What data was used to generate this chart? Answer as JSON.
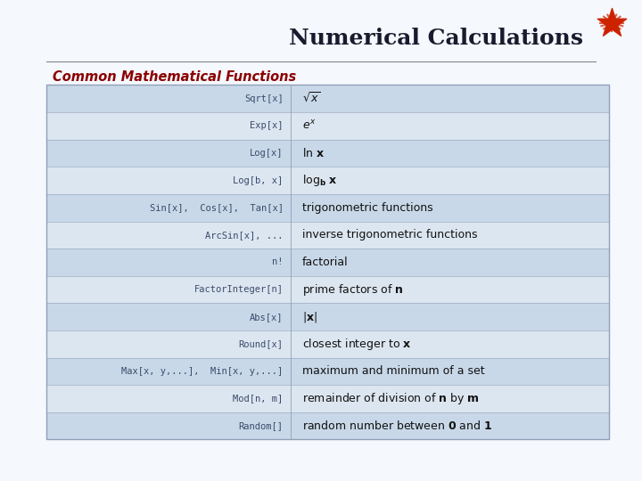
{
  "title": "Numerical Calculations",
  "subtitle": "Common Mathematical Functions",
  "subtitle_color": "#8B0000",
  "bg_color": "#f5f8fc",
  "table_border_color": "#90a0b8",
  "row_colors": [
    "#c8d8e8",
    "#dce6f0"
  ],
  "rows": [
    {
      "left": "Sqrt[x]",
      "right": "$\\sqrt{x}$"
    },
    {
      "left": "Exp[x]",
      "right": "$e^{x}$"
    },
    {
      "left": "Log[x]",
      "right": "$\\mathbf{\\ln\\, x}$"
    },
    {
      "left": "Log[b, x]",
      "right": "$\\mathbf{\\log_b\\, x}$"
    },
    {
      "left": "Sin[x],  Cos[x],  Tan[x]",
      "right": "trigonometric functions"
    },
    {
      "left": "ArcSin[x], ...",
      "right": "inverse trigonometric functions"
    },
    {
      "left": "n!",
      "right": "factorial"
    },
    {
      "left": "FactorInteger[n]",
      "right": "prime factors of $\\mathbf{n}$"
    },
    {
      "left": "Abs[x]",
      "right": "$|\\mathbf{x}|$"
    },
    {
      "left": "Round[x]",
      "right": "closest integer to $\\mathbf{x}$"
    },
    {
      "left": "Max[x, y,...],  Min[x, y,...]",
      "right": "maximum and minimum of a set"
    },
    {
      "left": "Mod[n, m]",
      "right": "remainder of division of $\\mathbf{n}$ by $\\mathbf{m}$"
    },
    {
      "left": "Random[]",
      "right": "random number between $\\mathbf{0}$ and $\\mathbf{1}$"
    }
  ]
}
